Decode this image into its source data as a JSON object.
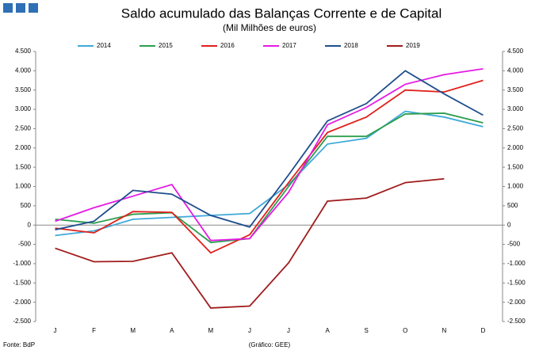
{
  "chart_data": {
    "type": "line",
    "title": "Saldo acumulado das Balanças Corrente e de Capital",
    "subtitle": "(Mil Milhões  de euros)",
    "source": "Fonte: BdP",
    "credit": "(Gráfico:  GEE)",
    "categories": [
      "J",
      "F",
      "M",
      "A",
      "M",
      "J",
      "J",
      "A",
      "S",
      "O",
      "N",
      "D"
    ],
    "ylim": [
      -2500,
      4500
    ],
    "yticks": [
      {
        "value": -2500,
        "label": "-2.500"
      },
      {
        "value": -2000,
        "label": "-2.000"
      },
      {
        "value": -1500,
        "label": "-1.500"
      },
      {
        "value": -1000,
        "label": "-1.000"
      },
      -500,
      0,
      500,
      {
        "value": 1000,
        "label": "1.000"
      },
      {
        "value": 1500,
        "label": "1.500"
      },
      {
        "value": 2000,
        "label": "2.000"
      },
      {
        "value": 2500,
        "label": "2.500"
      },
      {
        "value": 3000,
        "label": "3.000"
      },
      {
        "value": 3500,
        "label": "3.500"
      },
      {
        "value": 4000,
        "label": "4.000"
      },
      {
        "value": 4500,
        "label": "4.500"
      }
    ],
    "series": [
      {
        "name": "2014",
        "color": "#3fa9d9",
        "values": [
          -270,
          -150,
          150,
          200,
          250,
          300,
          1050,
          2100,
          2250,
          2950,
          2800,
          2550
        ]
      },
      {
        "name": "2015",
        "color": "#2e9e4e",
        "values": [
          150,
          50,
          280,
          320,
          -450,
          -350,
          1000,
          2300,
          2300,
          2880,
          2900,
          2650
        ]
      },
      {
        "name": "2016",
        "color": "#e0201b",
        "values": [
          -80,
          -200,
          350,
          330,
          -720,
          -250,
          1100,
          2400,
          2800,
          3500,
          3450,
          3750
        ]
      },
      {
        "name": "2017",
        "color": "#e51be5",
        "values": [
          100,
          450,
          750,
          1050,
          -400,
          -350,
          850,
          2600,
          3050,
          3650,
          3900,
          4050
        ]
      },
      {
        "name": "2018",
        "color": "#1f4e8c",
        "values": [
          -120,
          100,
          900,
          800,
          250,
          -50,
          1300,
          2700,
          3150,
          4000,
          3400,
          2850
        ]
      },
      {
        "name": "2019",
        "color": "#a01b1b",
        "values": [
          -600,
          -950,
          -940,
          -720,
          -2150,
          -2100,
          -980,
          620,
          700,
          1100,
          1200,
          null
        ]
      }
    ]
  }
}
